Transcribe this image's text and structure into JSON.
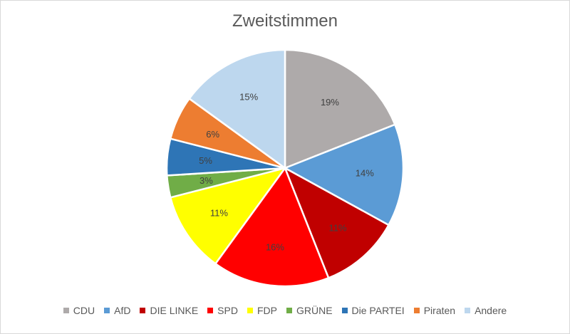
{
  "chart_data": {
    "type": "pie",
    "title": "Zweitstimmen",
    "legend_position": "bottom",
    "slices": [
      {
        "label": "CDU",
        "value": 19,
        "display": "19%",
        "color": "#aeaaaa"
      },
      {
        "label": "AfD",
        "value": 14,
        "display": "14%",
        "color": "#5b9bd5"
      },
      {
        "label": "DIE LINKE",
        "value": 11,
        "display": "11%",
        "color": "#c00000"
      },
      {
        "label": "SPD",
        "value": 16,
        "display": "16%",
        "color": "#ff0000"
      },
      {
        "label": "FDP",
        "value": 11,
        "display": "11%",
        "color": "#ffff00"
      },
      {
        "label": "GRÜNE",
        "value": 3,
        "display": "3%",
        "color": "#70ad47"
      },
      {
        "label": "Die PARTEI",
        "value": 5,
        "display": "5%",
        "color": "#2e75b6"
      },
      {
        "label": "Piraten",
        "value": 6,
        "display": "6%",
        "color": "#ed7d31"
      },
      {
        "label": "Andere",
        "value": 15,
        "display": "15%",
        "color": "#bdd7ee"
      }
    ]
  }
}
